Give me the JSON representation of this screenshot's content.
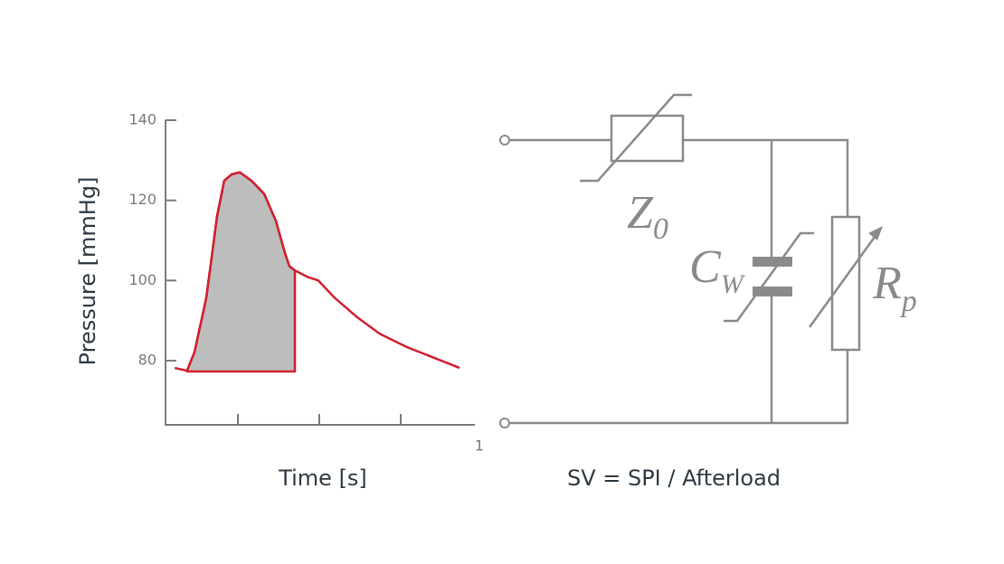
{
  "chart_data": {
    "type": "line",
    "y_label": "Pressure [mmHg]",
    "x_label": "Time [s]",
    "x": [
      0.056,
      0.094,
      0.117,
      0.153,
      0.186,
      0.208,
      0.231,
      0.256,
      0.292,
      0.331,
      0.367,
      0.394,
      0.408,
      0.425,
      0.464,
      0.497,
      0.547,
      0.617,
      0.686,
      0.769,
      0.853,
      0.931
    ],
    "values": [
      78.2,
      77.5,
      82.2,
      95.7,
      116.0,
      124.9,
      126.5,
      127.0,
      124.9,
      121.6,
      114.8,
      107.0,
      103.6,
      102.5,
      100.9,
      100.0,
      95.7,
      90.8,
      86.7,
      83.4,
      80.7,
      78.2
    ],
    "color": "#d0202e",
    "shaded": {
      "from": 0.094,
      "to": 0.425,
      "base": 77.3,
      "color": "#bdbdbd"
    },
    "xlim": [
      0,
      1
    ],
    "ylim": [
      64,
      140
    ],
    "xticks": [
      1
    ],
    "xminor_ticks": [
      0.25,
      0.5,
      0.75
    ],
    "yticks": [
      140,
      120,
      100,
      80
    ]
  },
  "circuit": {
    "labels": [
      {
        "main": "Z",
        "sub": "0"
      },
      {
        "main": "C",
        "sub": "W"
      },
      {
        "main": "R",
        "sub": "p"
      }
    ],
    "caption": "SV = SPI / Afterload"
  }
}
